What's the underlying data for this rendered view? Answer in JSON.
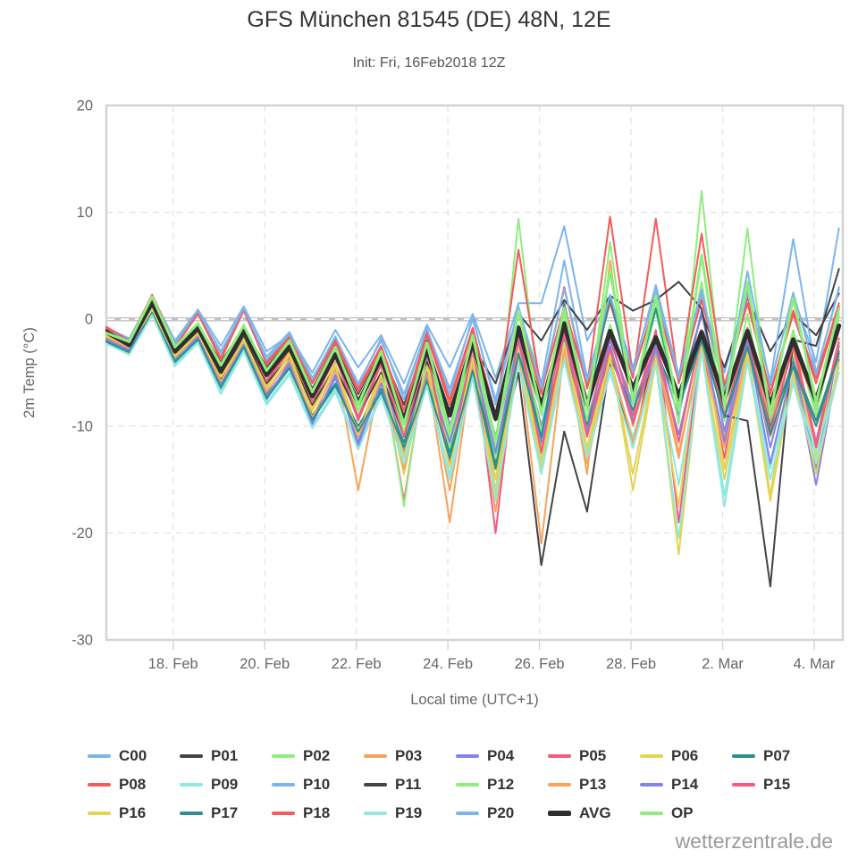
{
  "header": {
    "title": "GFS München 81545 (DE) 48N, 12E",
    "subtitle": "Init: Fri, 16Feb2018 12Z"
  },
  "watermark": "wetterzentrale.de",
  "colors": {
    "grid": "#e4e4e4",
    "border": "#d3d3d3",
    "tick_mark": "#ccd6eb",
    "zero_line": "#c2c2c2",
    "axis_text": "#666666",
    "legend_text": "#333333"
  },
  "chart_data": {
    "type": "line",
    "title": "GFS München 81545 (DE) 48N, 12E",
    "subtitle": "Init: Fri, 16Feb2018 12Z",
    "xlabel": "Local time (UTC+1)",
    "ylabel": "2m Temp (°C)",
    "ylim": [
      -30,
      20
    ],
    "y_ticks": [
      20,
      10,
      0,
      -10,
      -20,
      -30
    ],
    "grid": true,
    "legend_position": "bottom",
    "x_axis": {
      "t0_label": "16 Feb 13:00 local (init 16Feb2018 12Z)",
      "t_step_hours": 12,
      "t_max_hours": 386,
      "tick_hours": [
        35,
        83,
        131,
        179,
        227,
        275,
        323,
        371
      ],
      "tick_labels": [
        "18. Feb",
        "20. Feb",
        "22. Feb",
        "24. Feb",
        "26. Feb",
        "28. Feb",
        "2. Mar",
        "4. Mar"
      ]
    },
    "series": [
      {
        "name": "C00",
        "color": "#7cb5ec",
        "width": 2,
        "values": [
          -0.8,
          -1.8,
          2.2,
          -2.0,
          0.9,
          -2.5,
          1.2,
          -3.0,
          -1.5,
          -5.0,
          -1.0,
          -4.5,
          -1.5,
          -6.0,
          -0.5,
          -4.5,
          0.5,
          -5.5,
          1.5,
          1.5,
          8.7,
          -2.0,
          2.0,
          -4.5,
          2.5,
          -5.5,
          2.0,
          -5.0,
          2.8,
          -6.0,
          2.2,
          -4.0,
          8.5
        ]
      },
      {
        "name": "P01",
        "color": "#434348",
        "width": 2,
        "values": [
          -1.5,
          -2.0,
          1.8,
          -2.5,
          -0.5,
          -4.0,
          -0.8,
          -4.5,
          -2.0,
          -6.5,
          -2.5,
          -7.0,
          -3.0,
          -8.0,
          -2.0,
          -10.0,
          -3.5,
          -14.0,
          -5.0,
          -23.0,
          -10.5,
          -18.0,
          -4.0,
          -12.0,
          -2.0,
          -7.5,
          0.5,
          -4.5,
          2.0,
          -3.0,
          0.5,
          -1.5,
          2.4
        ]
      },
      {
        "name": "P02",
        "color": "#90ed7d",
        "width": 2,
        "values": [
          -1.4,
          -2.2,
          1.9,
          -2.8,
          -0.6,
          -4.5,
          -0.5,
          -5.0,
          -2.2,
          -7.0,
          -2.8,
          -8.5,
          -3.2,
          -10.5,
          -2.5,
          -11.0,
          -1.8,
          -12.0,
          9.4,
          -9.0,
          0.8,
          -8.5,
          -0.5,
          -7.0,
          1.2,
          -8.0,
          3.5,
          -9.5,
          0.5,
          -10.5,
          -1.5,
          -9.0,
          0.2
        ]
      },
      {
        "name": "P03",
        "color": "#f7a35c",
        "width": 2,
        "values": [
          -1.0,
          -2.5,
          1.5,
          -3.5,
          -1.0,
          -5.5,
          -1.5,
          -6.5,
          -3.0,
          -8.5,
          -4.0,
          -16.0,
          -5.0,
          -13.0,
          -4.5,
          -19.0,
          -3.8,
          -16.0,
          -2.0,
          -12.0,
          -1.5,
          -14.5,
          5.5,
          -10.0,
          -2.5,
          -12.5,
          -3.0,
          -11.0,
          -2.0,
          -9.5,
          -2.8,
          -8.0,
          -1.0
        ]
      },
      {
        "name": "P04",
        "color": "#8085e9",
        "width": 2,
        "values": [
          -1.8,
          -2.8,
          1.2,
          -4.0,
          -1.5,
          -6.5,
          -2.0,
          -7.5,
          -4.0,
          -9.5,
          -5.5,
          -11.5,
          -5.0,
          -12.0,
          -4.0,
          -10.0,
          -3.0,
          -11.0,
          -1.5,
          -10.0,
          -1.0,
          -9.5,
          -2.0,
          -8.0,
          -2.5,
          -9.0,
          0.8,
          -10.5,
          -1.2,
          -12.0,
          -3.5,
          -14.0,
          -2.5
        ]
      },
      {
        "name": "P05",
        "color": "#f15c80",
        "width": 2,
        "values": [
          -1.2,
          -2.6,
          1.4,
          -3.0,
          -0.9,
          -5.0,
          -1.2,
          -6.0,
          -2.8,
          -8.0,
          -3.5,
          -9.5,
          -4.2,
          -17.0,
          -3.5,
          -12.0,
          -2.8,
          -14.0,
          -1.0,
          -11.0,
          -0.5,
          -10.0,
          -1.5,
          -9.0,
          -1.0,
          -19.0,
          -2.2,
          -13.0,
          -0.8,
          -9.0,
          -2.0,
          -11.5,
          -1.8
        ]
      },
      {
        "name": "P06",
        "color": "#e4d354",
        "width": 2,
        "values": [
          -1.6,
          -2.4,
          1.0,
          -3.2,
          -1.2,
          -5.2,
          -1.8,
          -6.2,
          -3.2,
          -8.2,
          -4.2,
          -10.5,
          -4.8,
          -14.5,
          -4.0,
          -12.5,
          -3.2,
          -15.0,
          -2.5,
          -13.0,
          -2.0,
          -12.0,
          -3.0,
          -16.0,
          -4.0,
          -17.5,
          -1.0,
          -14.0,
          -2.5,
          -16.5,
          -3.0,
          -13.0,
          -2.0
        ]
      },
      {
        "name": "P07",
        "color": "#2b908f",
        "width": 2,
        "values": [
          -2.0,
          -3.0,
          0.8,
          -3.8,
          -1.8,
          -6.0,
          -2.5,
          -7.0,
          -4.5,
          -9.0,
          -6.0,
          -10.0,
          -6.5,
          -11.5,
          -5.5,
          -12.5,
          -4.5,
          -13.5,
          -3.0,
          -10.5,
          -2.5,
          -9.8,
          -3.5,
          -8.5,
          -3.0,
          -7.8,
          -1.8,
          -8.8,
          -2.2,
          -10.0,
          -4.0,
          -9.5,
          -3.0
        ]
      },
      {
        "name": "P08",
        "color": "#f45b5b",
        "width": 2,
        "values": [
          -0.9,
          -2.1,
          2.0,
          -2.6,
          0.5,
          -3.8,
          0.8,
          -4.2,
          -1.8,
          -6.0,
          -2.2,
          -6.8,
          -2.8,
          -9.0,
          -1.5,
          -8.0,
          -1.0,
          -9.5,
          0.5,
          -7.0,
          3.0,
          -6.5,
          1.5,
          -5.5,
          9.4,
          -6.0,
          1.8,
          -6.5,
          2.2,
          -7.0,
          0.5,
          -6.0,
          1.2
        ]
      },
      {
        "name": "P09",
        "color": "#91e8e1",
        "width": 2,
        "values": [
          -2.2,
          -3.2,
          0.5,
          -4.2,
          -2.0,
          -6.8,
          -2.8,
          -7.8,
          -5.0,
          -10.0,
          -6.5,
          -12.0,
          -7.0,
          -13.0,
          -6.0,
          -14.5,
          -5.0,
          -16.0,
          -4.0,
          -13.5,
          -3.5,
          -12.5,
          -4.5,
          -11.0,
          -4.0,
          -15.5,
          -2.5,
          -16.5,
          -3.5,
          -14.0,
          -5.5,
          -12.5,
          -4.5
        ]
      },
      {
        "name": "P10",
        "color": "#7cb5ec",
        "width": 2,
        "values": [
          -1.1,
          -1.9,
          2.1,
          -2.2,
          0.7,
          -3.0,
          0.9,
          -3.5,
          -1.2,
          -5.5,
          -1.8,
          -6.0,
          -2.0,
          -7.0,
          -1.0,
          -6.5,
          0.0,
          -7.5,
          1.0,
          -6.0,
          5.5,
          -5.5,
          2.0,
          -4.8,
          3.0,
          -5.2,
          2.5,
          -6.8,
          2.5,
          -5.8,
          7.5,
          -5.0,
          2.8
        ]
      },
      {
        "name": "P11",
        "color": "#434348",
        "width": 2,
        "values": [
          -1.0,
          -2.6,
          1.4,
          -3.2,
          -1.2,
          -5.5,
          -1.5,
          -6.0,
          -3.5,
          -8.0,
          -4.5,
          -9.0,
          -5.0,
          -11.0,
          -4.0,
          -8.5,
          -2.5,
          -6.0,
          0.5,
          -2.0,
          1.8,
          -1.0,
          2.2,
          0.8,
          1.8,
          3.5,
          1.0,
          -9.0,
          -9.5,
          -25.0,
          -1.9,
          -2.5,
          4.7
        ]
      },
      {
        "name": "P12",
        "color": "#90ed7d",
        "width": 2,
        "values": [
          -1.3,
          -2.3,
          1.7,
          -2.9,
          -0.7,
          -4.7,
          -0.9,
          -5.5,
          -2.5,
          -7.5,
          -3.0,
          -9.0,
          -3.5,
          -17.5,
          -2.8,
          -12.0,
          -2.0,
          -13.0,
          -0.5,
          -10.5,
          0.5,
          -9.5,
          7.2,
          -8.0,
          0.8,
          -9.8,
          12.0,
          -8.5,
          8.5,
          -9.2,
          -1.0,
          -8.5,
          0.5
        ]
      },
      {
        "name": "P13",
        "color": "#f7a35c",
        "width": 2,
        "values": [
          -1.7,
          -2.7,
          1.3,
          -3.6,
          -1.4,
          -5.8,
          -2.2,
          -6.8,
          -3.8,
          -9.2,
          -4.8,
          -11.0,
          -5.5,
          -14.0,
          -5.0,
          -16.0,
          -4.2,
          -18.0,
          -3.0,
          -21.0,
          -2.8,
          -13.5,
          -3.8,
          -11.5,
          -3.2,
          -13.0,
          -2.0,
          -12.0,
          -3.0,
          -11.0,
          -4.5,
          -10.0,
          -3.5
        ]
      },
      {
        "name": "P14",
        "color": "#8085e9",
        "width": 2,
        "values": [
          -1.9,
          -2.9,
          1.1,
          -3.9,
          -1.7,
          -6.2,
          -2.4,
          -7.2,
          -4.2,
          -9.8,
          -5.2,
          -11.8,
          -6.0,
          -12.5,
          -4.8,
          -11.5,
          -3.5,
          -12.5,
          -2.0,
          -11.5,
          -1.8,
          -10.5,
          -2.5,
          -9.5,
          -2.8,
          -10.8,
          -1.5,
          -11.5,
          -2.0,
          -13.5,
          -4.2,
          -15.5,
          -3.8
        ]
      },
      {
        "name": "P15",
        "color": "#f15c80",
        "width": 2,
        "values": [
          -1.1,
          -2.2,
          1.6,
          -2.7,
          -0.8,
          -4.6,
          -1.0,
          -5.8,
          -2.4,
          -7.8,
          -3.2,
          -9.2,
          -4.0,
          -11.0,
          -3.0,
          -13.5,
          -2.5,
          -20.0,
          -1.5,
          -12.5,
          -1.2,
          -11.0,
          -2.8,
          -9.8,
          -1.8,
          -11.5,
          -1.0,
          -9.0,
          -1.5,
          -10.5,
          -2.5,
          -12.0,
          -2.2
        ]
      },
      {
        "name": "P16",
        "color": "#e4d354",
        "width": 2,
        "values": [
          -1.5,
          -2.5,
          0.9,
          -3.4,
          -1.3,
          -5.4,
          -2.0,
          -6.4,
          -3.4,
          -8.6,
          -4.4,
          -10.8,
          -5.2,
          -12.8,
          -4.4,
          -13.8,
          -3.6,
          -16.5,
          -2.8,
          -14.0,
          -2.2,
          -12.8,
          -3.4,
          -14.5,
          -3.8,
          -22.0,
          -2.8,
          -15.0,
          -3.2,
          -17.0,
          -5.0,
          -14.5,
          -4.0
        ]
      },
      {
        "name": "P17",
        "color": "#2b908f",
        "width": 2,
        "values": [
          -2.1,
          -3.1,
          0.6,
          -4.0,
          -1.9,
          -6.4,
          -2.6,
          -7.4,
          -4.6,
          -9.4,
          -6.2,
          -10.5,
          -6.8,
          -12.0,
          -5.8,
          -13.0,
          -4.8,
          -14.0,
          -3.2,
          -11.0,
          1.5,
          -8.0,
          2.0,
          -7.0,
          1.0,
          -8.2,
          -2.0,
          -9.2,
          -2.6,
          -10.8,
          -4.4,
          -10.0,
          -3.2
        ]
      },
      {
        "name": "P18",
        "color": "#f45b5b",
        "width": 2,
        "values": [
          -0.7,
          -2.0,
          2.3,
          -2.4,
          0.6,
          -3.6,
          1.0,
          -4.0,
          -1.6,
          -5.8,
          -2.0,
          -6.5,
          -2.5,
          -8.5,
          -1.2,
          -7.5,
          -0.8,
          -9.0,
          6.5,
          -6.8,
          1.2,
          -6.2,
          9.6,
          -5.2,
          1.8,
          -5.8,
          8.0,
          -6.2,
          1.5,
          -6.8,
          0.8,
          -5.5,
          1.5
        ]
      },
      {
        "name": "P19",
        "color": "#91e8e1",
        "width": 2,
        "values": [
          -2.3,
          -3.3,
          0.4,
          -4.4,
          -2.2,
          -7.0,
          -3.0,
          -8.0,
          -5.2,
          -10.2,
          -6.8,
          -12.2,
          -7.2,
          -13.5,
          -6.2,
          -15.0,
          -5.5,
          -17.0,
          -4.2,
          -14.5,
          -3.8,
          -13.0,
          -5.0,
          -12.0,
          -4.2,
          -20.5,
          -3.0,
          -17.5,
          -4.0,
          -15.0,
          -6.0,
          -13.5,
          -5.0
        ]
      },
      {
        "name": "P20",
        "color": "#7cb5ec",
        "width": 2,
        "values": [
          -1.2,
          -2.0,
          2.0,
          -2.3,
          0.8,
          -3.2,
          1.1,
          -3.8,
          -1.4,
          -5.6,
          -1.6,
          -6.2,
          -1.8,
          -7.5,
          -0.8,
          -7.0,
          0.2,
          -8.0,
          1.2,
          -6.5,
          2.8,
          -5.8,
          2.3,
          -5.0,
          3.2,
          -5.5,
          2.8,
          -7.2,
          4.5,
          -6.2,
          2.5,
          -5.2,
          3.0
        ]
      },
      {
        "name": "AVG",
        "color": "#2f2f2f",
        "width": 5,
        "values": [
          -1.2,
          -2.4,
          1.6,
          -3.0,
          -0.8,
          -4.9,
          -1.0,
          -5.2,
          -2.6,
          -7.2,
          -3.3,
          -7.8,
          -3.6,
          -9.5,
          -2.8,
          -9.0,
          -2.2,
          -9.3,
          -0.8,
          -8.2,
          -0.4,
          -8.0,
          -1.1,
          -6.5,
          -1.7,
          -7.2,
          -1.2,
          -7.5,
          -1.1,
          -8.0,
          -1.9,
          -7.6,
          -0.6
        ]
      },
      {
        "name": "OP",
        "color": "#90ed7d",
        "width": 3,
        "values": [
          -1.3,
          -2.1,
          2.1,
          -2.6,
          -0.4,
          -4.3,
          -0.6,
          -4.8,
          -2.0,
          -6.8,
          -2.6,
          -8.0,
          -3.0,
          -9.8,
          -2.2,
          -10.5,
          -1.5,
          -11.5,
          0.8,
          -8.8,
          1.0,
          -8.2,
          4.5,
          -7.5,
          2.2,
          -8.5,
          6.0,
          -8.0,
          3.5,
          -8.8,
          2.0,
          -7.8,
          1.0
        ]
      }
    ]
  }
}
